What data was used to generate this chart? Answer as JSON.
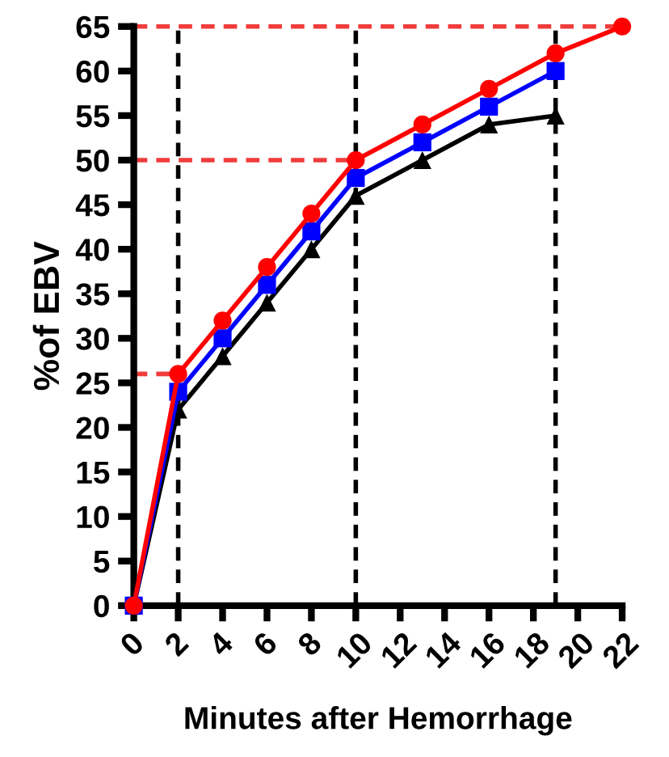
{
  "chart_data": {
    "type": "line",
    "xlabel": "Minutes after Hemorrhage",
    "ylabel": "%of EBV",
    "xlim": [
      0,
      22
    ],
    "xticks": [
      0,
      2,
      4,
      6,
      8,
      10,
      12,
      14,
      16,
      18,
      20,
      22
    ],
    "ylim": [
      0,
      65
    ],
    "yticks": [
      0,
      5,
      10,
      15,
      20,
      25,
      30,
      35,
      40,
      45,
      50,
      55,
      60,
      65
    ],
    "grid": false,
    "line_style": "solid",
    "series": [
      {
        "color": "#000000",
        "marker": "triangle",
        "x": [
          0,
          2,
          4,
          6,
          8,
          10,
          13,
          16,
          19
        ],
        "values": [
          0,
          22,
          28,
          34,
          40,
          46,
          50,
          54,
          55
        ]
      },
      {
        "color": "#0000ff",
        "marker": "square",
        "x": [
          0,
          2,
          4,
          6,
          8,
          10,
          13,
          16,
          19
        ],
        "values": [
          0,
          24,
          30,
          36,
          42,
          48,
          52,
          56,
          60
        ]
      },
      {
        "color": "#ff0000",
        "marker": "circle",
        "x": [
          0,
          2,
          4,
          6,
          8,
          10,
          13,
          16,
          19,
          22
        ],
        "values": [
          0,
          26,
          32,
          38,
          44,
          50,
          54,
          58,
          62,
          65
        ]
      }
    ],
    "ref_lines": [
      {
        "axis": "x",
        "value": 2,
        "color": "#000000",
        "line_style": "dashed"
      },
      {
        "axis": "x",
        "value": 10,
        "color": "#000000",
        "line_style": "dashed"
      },
      {
        "axis": "x",
        "value": 19,
        "color": "#000000",
        "line_style": "dashed"
      },
      {
        "axis": "y",
        "value": 26,
        "color": "#f03c3c",
        "line_style": "dashed"
      },
      {
        "axis": "y",
        "value": 50,
        "color": "#f03c3c",
        "line_style": "dashed"
      },
      {
        "axis": "y",
        "value": 65,
        "color": "#f03c3c",
        "line_style": "dashed"
      }
    ]
  }
}
